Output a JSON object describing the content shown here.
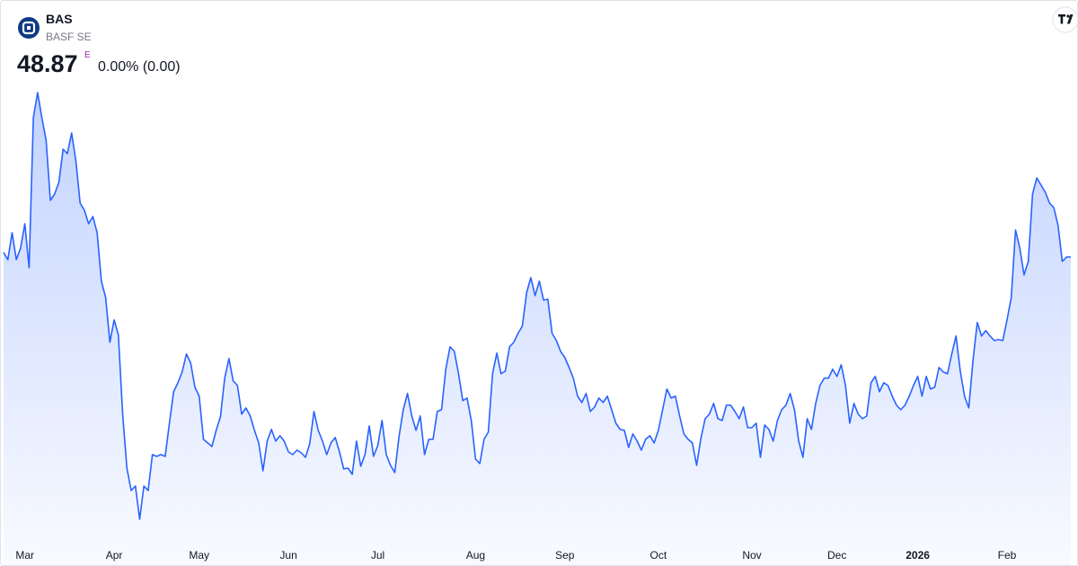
{
  "quote": {
    "symbol": "BAS",
    "name": "BASF SE",
    "price": 48.87,
    "price_flag": "E",
    "change": "0.00% (0.00)"
  },
  "chart_data": {
    "type": "area",
    "color": "#2962ff",
    "ylim": [
      36.27,
      56.67
    ],
    "categories": [
      null,
      null,
      null,
      null,
      null,
      "Mar",
      null,
      null,
      null,
      null,
      null,
      null,
      null,
      null,
      null,
      null,
      null,
      null,
      null,
      null,
      null,
      null,
      null,
      null,
      null,
      null,
      "Apr",
      null,
      null,
      null,
      null,
      null,
      null,
      null,
      null,
      null,
      null,
      null,
      null,
      null,
      null,
      null,
      null,
      null,
      null,
      null,
      "May",
      null,
      null,
      null,
      null,
      null,
      null,
      null,
      null,
      null,
      null,
      null,
      null,
      null,
      null,
      null,
      null,
      null,
      null,
      null,
      null,
      "Jun",
      null,
      null,
      null,
      null,
      null,
      null,
      null,
      null,
      null,
      null,
      null,
      null,
      null,
      null,
      null,
      null,
      null,
      null,
      null,
      null,
      "Jul",
      null,
      null,
      null,
      null,
      null,
      null,
      null,
      null,
      null,
      null,
      null,
      null,
      null,
      null,
      null,
      null,
      null,
      null,
      null,
      null,
      null,
      null,
      "Aug",
      null,
      null,
      null,
      null,
      null,
      null,
      null,
      null,
      null,
      null,
      null,
      null,
      null,
      null,
      null,
      null,
      null,
      null,
      null,
      null,
      "Sep",
      null,
      null,
      null,
      null,
      null,
      null,
      null,
      null,
      null,
      null,
      null,
      null,
      null,
      null,
      null,
      null,
      null,
      null,
      null,
      null,
      null,
      "Oct",
      null,
      null,
      null,
      null,
      null,
      null,
      null,
      null,
      null,
      null,
      null,
      null,
      null,
      null,
      null,
      null,
      null,
      null,
      null,
      null,
      null,
      "Nov",
      null,
      null,
      null,
      null,
      null,
      null,
      null,
      null,
      null,
      null,
      null,
      null,
      null,
      null,
      null,
      null,
      null,
      null,
      null,
      "Dec",
      null,
      null,
      null,
      null,
      null,
      null,
      null,
      null,
      null,
      null,
      null,
      null,
      null,
      null,
      null,
      null,
      null,
      null,
      "2026",
      null,
      null,
      null,
      null,
      null,
      null,
      null,
      null,
      null,
      null,
      null,
      null,
      null,
      null,
      null,
      null,
      null,
      null,
      null,
      null,
      "Feb",
      null,
      null,
      null,
      null,
      null,
      null,
      null,
      null,
      null,
      null,
      null,
      null,
      null,
      null,
      null
    ],
    "values": [
      49.07,
      48.75,
      49.95,
      48.75,
      49.27,
      50.35,
      48.39,
      55.07,
      56.19,
      55.07,
      54.07,
      51.39,
      51.67,
      52.19,
      53.67,
      53.47,
      54.39,
      53.15,
      51.27,
      50.95,
      50.35,
      50.67,
      49.95,
      47.79,
      47.07,
      45.07,
      46.07,
      45.39,
      41.87,
      39.47,
      38.47,
      38.67,
      37.19,
      38.67,
      38.47,
      40.07,
      39.99,
      40.07,
      39.99,
      41.47,
      42.87,
      43.27,
      43.75,
      44.55,
      44.15,
      43.07,
      42.67,
      40.75,
      40.59,
      40.43,
      41.15,
      41.75,
      43.47,
      44.35,
      43.35,
      43.15,
      41.87,
      42.15,
      41.79,
      41.15,
      40.59,
      39.35,
      40.67,
      41.19,
      40.67,
      40.91,
      40.67,
      40.19,
      40.07,
      40.27,
      40.15,
      39.95,
      40.55,
      41.99,
      41.15,
      40.67,
      40.07,
      40.59,
      40.83,
      40.19,
      39.43,
      39.47,
      39.19,
      40.67,
      39.55,
      40.07,
      41.35,
      39.99,
      40.47,
      41.59,
      40.07,
      39.59,
      39.27,
      40.87,
      42.07,
      42.79,
      41.79,
      41.15,
      41.79,
      40.07,
      40.75,
      40.75,
      41.99,
      42.07,
      43.87,
      44.87,
      44.67,
      43.67,
      42.47,
      42.59,
      41.59,
      39.87,
      39.67,
      40.75,
      41.07,
      43.67,
      44.59,
      43.67,
      43.79,
      44.87,
      45.07,
      45.47,
      45.79,
      47.27,
      47.95,
      47.15,
      47.79,
      46.95,
      46.99,
      45.47,
      45.15,
      44.67,
      44.39,
      43.95,
      43.47,
      42.67,
      42.39,
      42.79,
      41.99,
      42.19,
      42.59,
      42.39,
      42.67,
      42.07,
      41.47,
      41.19,
      41.15,
      40.39,
      40.99,
      40.67,
      40.27,
      40.75,
      40.91,
      40.59,
      41.15,
      42.07,
      42.99,
      42.59,
      42.67,
      41.79,
      40.99,
      40.75,
      40.59,
      39.59,
      40.79,
      41.67,
      41.87,
      42.35,
      41.67,
      41.59,
      42.27,
      42.27,
      41.99,
      41.67,
      42.19,
      41.27,
      41.27,
      41.47,
      39.95,
      41.39,
      41.19,
      40.67,
      41.59,
      42.07,
      42.27,
      42.79,
      42.07,
      40.67,
      39.95,
      41.67,
      41.19,
      42.35,
      43.15,
      43.47,
      43.47,
      43.87,
      43.55,
      44.07,
      43.15,
      41.47,
      42.35,
      41.87,
      41.67,
      41.79,
      43.27,
      43.55,
      42.87,
      43.27,
      43.15,
      42.67,
      42.27,
      42.07,
      42.27,
      42.67,
      43.15,
      43.55,
      42.67,
      43.55,
      42.99,
      43.07,
      43.95,
      43.75,
      43.67,
      44.55,
      45.35,
      43.79,
      42.67,
      42.15,
      44.27,
      45.95,
      45.35,
      45.59,
      45.35,
      45.15,
      45.19,
      45.15,
      46.07,
      47.07,
      50.07,
      49.27,
      48.07,
      48.67,
      51.67,
      52.39,
      52.07,
      51.75,
      51.27,
      51.07,
      50.27,
      48.67,
      48.87,
      48.87
    ]
  }
}
